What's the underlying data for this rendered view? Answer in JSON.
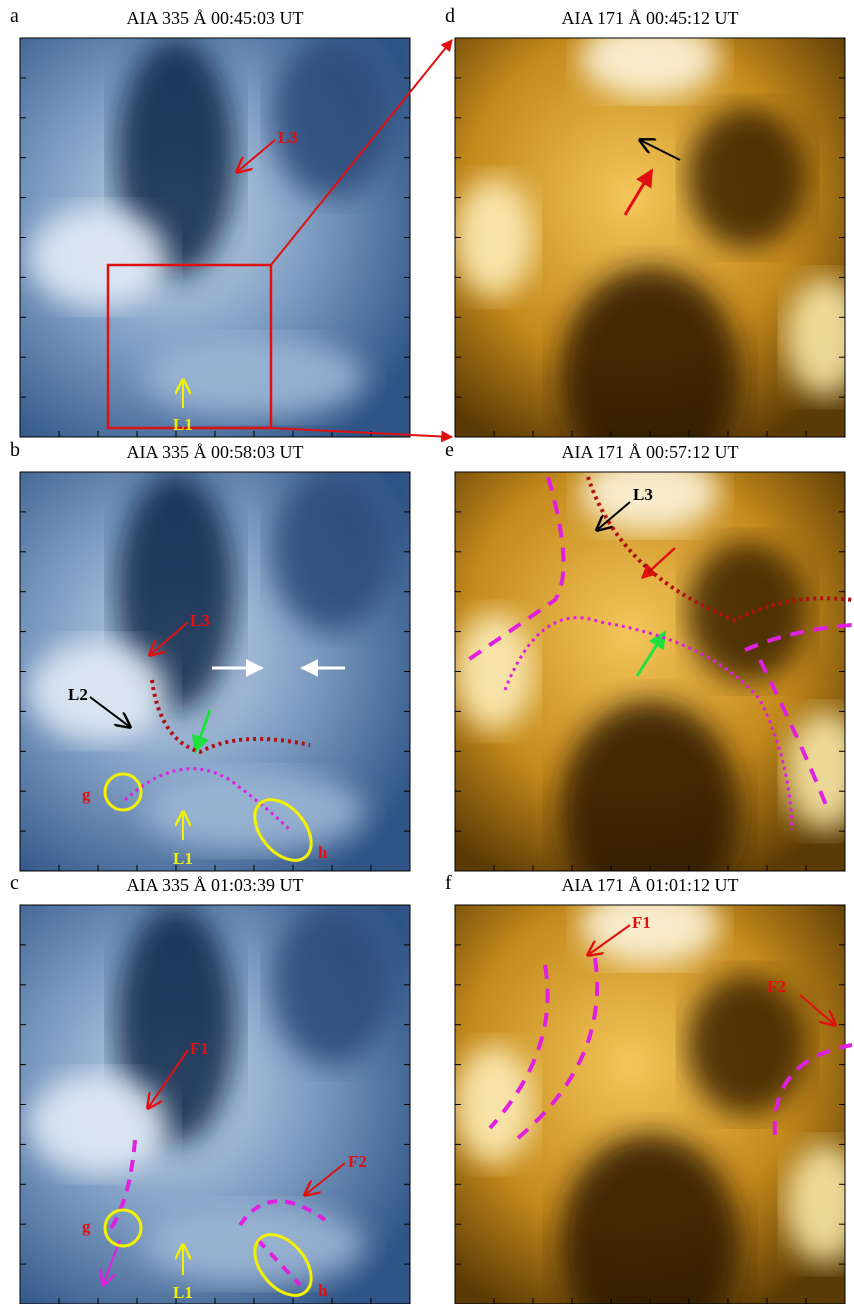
{
  "panels": [
    {
      "letter": "a",
      "title": "AIA 335 Å 00:45:03 UT",
      "labels": [
        "L3",
        "L1"
      ]
    },
    {
      "letter": "b",
      "title": "AIA 335 Å 00:58:03 UT",
      "labels": [
        "L3",
        "L2",
        "g",
        "L1",
        "h"
      ]
    },
    {
      "letter": "c",
      "title": "AIA 335 Å 01:03:39 UT",
      "labels": [
        "F1",
        "F2",
        "g",
        "L1",
        "h"
      ]
    },
    {
      "letter": "d",
      "title": "AIA 171 Å 00:45:12 UT",
      "labels": []
    },
    {
      "letter": "e",
      "title": "AIA 171 Å 00:57:12 UT",
      "labels": [
        "L3"
      ]
    },
    {
      "letter": "f",
      "title": "AIA 171 Å 01:01:12 UT",
      "labels": [
        "F1",
        "F2"
      ]
    }
  ]
}
